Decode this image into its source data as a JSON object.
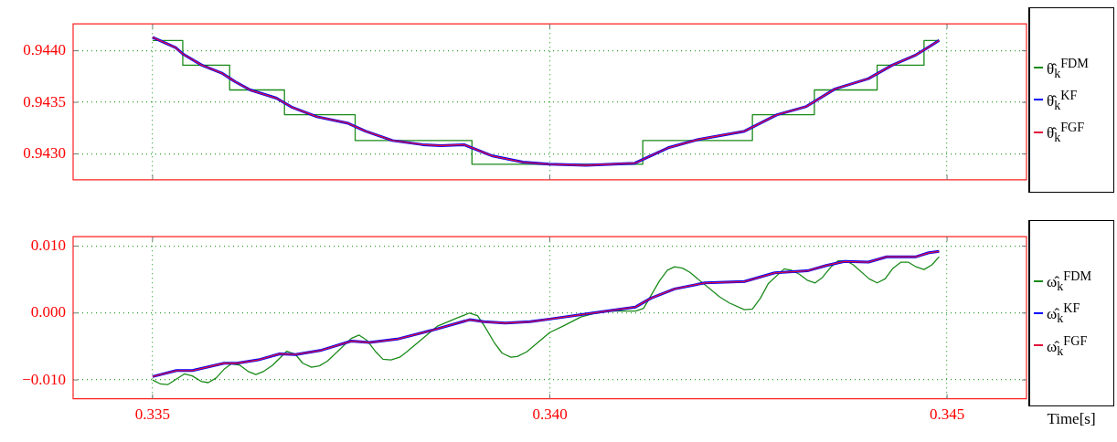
{
  "chart_data": [
    {
      "type": "line",
      "xlim": [
        0.334,
        0.346
      ],
      "ylim": [
        0.94275,
        0.94426
      ],
      "xticks": [
        {
          "value": 0.335,
          "label": null
        },
        {
          "value": 0.34,
          "label": null
        },
        {
          "value": 0.345,
          "label": null
        }
      ],
      "yticks": [
        {
          "value": 0.943,
          "label": "0.9430"
        },
        {
          "value": 0.9435,
          "label": "0.9435"
        },
        {
          "value": 0.944,
          "label": "0.9440"
        }
      ],
      "tick_labels": "y",
      "grid": true,
      "legend": "right",
      "marker": "none",
      "series": [
        {
          "name": "θ̂$_{k}$$^{FDM}$",
          "type": "step",
          "color": "#1a8a1a",
          "x": [
            0.335,
            0.33538,
            0.33597,
            0.33666,
            0.33755,
            0.33902,
            0.34117,
            0.34255,
            0.34333,
            0.34412,
            0.34471,
            0.3449
          ],
          "values": [
            0.9441,
            0.94386,
            0.94362,
            0.94338,
            0.94313,
            0.9429,
            0.94313,
            0.94338,
            0.94362,
            0.94386,
            0.9441,
            0.9441
          ]
        },
        {
          "name": "θ̂$_{k}$$^{KF}$",
          "type": "line",
          "color": "#0000ff",
          "x": [
            0.335,
            0.33529,
            0.33538,
            0.33562,
            0.33588,
            0.33604,
            0.33623,
            0.33656,
            0.33676,
            0.33707,
            0.33745,
            0.33768,
            0.33802,
            0.3384,
            0.33863,
            0.33892,
            0.33928,
            0.33966,
            0.33999,
            0.34046,
            0.34107,
            0.34149,
            0.34187,
            0.34245,
            0.34286,
            0.34323,
            0.34359,
            0.34401,
            0.34431,
            0.34461,
            0.3449
          ],
          "values": [
            0.94413,
            0.94403,
            0.94397,
            0.94386,
            0.94378,
            0.9437,
            0.94362,
            0.94354,
            0.94345,
            0.94336,
            0.9433,
            0.94322,
            0.94313,
            0.94309,
            0.94308,
            0.94309,
            0.94298,
            0.94292,
            0.9429,
            0.94289,
            0.94291,
            0.94306,
            0.94314,
            0.94322,
            0.94338,
            0.94346,
            0.94363,
            0.94373,
            0.94386,
            0.94396,
            0.9441
          ]
        },
        {
          "name": "θ̂$_{k}$$^{FGF}$",
          "type": "line",
          "color": "#e0103a",
          "x": [
            0.335,
            0.33529,
            0.33538,
            0.33562,
            0.33588,
            0.33604,
            0.33623,
            0.33656,
            0.33676,
            0.33707,
            0.33745,
            0.33768,
            0.33802,
            0.3384,
            0.33863,
            0.33892,
            0.33928,
            0.33966,
            0.33999,
            0.34046,
            0.34107,
            0.34149,
            0.34187,
            0.34245,
            0.34286,
            0.34323,
            0.34359,
            0.34401,
            0.34431,
            0.34461,
            0.3449
          ],
          "values": [
            0.94413,
            0.94403,
            0.94397,
            0.94386,
            0.94378,
            0.9437,
            0.94362,
            0.94354,
            0.94345,
            0.94336,
            0.9433,
            0.94322,
            0.94313,
            0.94309,
            0.94308,
            0.94309,
            0.94298,
            0.94292,
            0.9429,
            0.94289,
            0.94291,
            0.94306,
            0.94314,
            0.94322,
            0.94338,
            0.94346,
            0.94363,
            0.94373,
            0.94386,
            0.94396,
            0.9441
          ]
        }
      ]
    },
    {
      "type": "line",
      "xlim": [
        0.334,
        0.346
      ],
      "ylim": [
        -0.0128,
        0.0114
      ],
      "xlabel": "Time[s]",
      "xticks": [
        {
          "value": 0.335,
          "label": "0.335"
        },
        {
          "value": 0.34,
          "label": "0.340"
        },
        {
          "value": 0.345,
          "label": "0.345"
        }
      ],
      "yticks": [
        {
          "value": -0.01,
          "label": "−0.010"
        },
        {
          "value": 0,
          "label": "0.000"
        },
        {
          "value": 0.01,
          "label": "0.010"
        }
      ],
      "grid": true,
      "legend": "right",
      "marker": "none",
      "series": [
        {
          "name": "ω̂$_{k}$$^{FDM}$",
          "type": "line",
          "color": "#1a8a1a",
          "x": [
            0.335,
            0.3351,
            0.33519,
            0.3354,
            0.3355,
            0.33561,
            0.3357,
            0.3358,
            0.3359,
            0.33599,
            0.3361,
            0.3362,
            0.3363,
            0.3364,
            0.33651,
            0.33669,
            0.3368,
            0.33689,
            0.337,
            0.3371,
            0.3372,
            0.3375,
            0.3376,
            0.3377,
            0.33781,
            0.3379,
            0.338,
            0.33811,
            0.3382,
            0.33858,
            0.33882,
            0.33899,
            0.33909,
            0.33918,
            0.3393,
            0.3394,
            0.33951,
            0.33959,
            0.33971,
            0.34,
            0.34016,
            0.34039,
            0.34054,
            0.34073,
            0.34108,
            0.34118,
            0.34138,
            0.34148,
            0.34157,
            0.34167,
            0.34176,
            0.34214,
            0.34226,
            0.34245,
            0.34255,
            0.34265,
            0.34275,
            0.34295,
            0.34304,
            0.34314,
            0.34324,
            0.34334,
            0.34343,
            0.34354,
            0.34363,
            0.34373,
            0.34382,
            0.34402,
            0.34412,
            0.34422,
            0.34432,
            0.34442,
            0.34451,
            0.34461,
            0.34471,
            0.34481,
            0.3449
          ],
          "values": [
            -0.01,
            -0.0106,
            -0.0107,
            -0.0091,
            -0.0094,
            -0.0102,
            -0.0104,
            -0.0097,
            -0.0084,
            -0.0076,
            -0.0078,
            -0.0087,
            -0.0092,
            -0.0087,
            -0.0078,
            -0.0057,
            -0.0062,
            -0.0075,
            -0.0081,
            -0.0079,
            -0.0072,
            -0.0038,
            -0.0033,
            -0.0041,
            -0.0058,
            -0.0069,
            -0.007,
            -0.0066,
            -0.0058,
            -0.002,
            -0.0008,
            0,
            -0.0004,
            -0.002,
            -0.0044,
            -0.006,
            -0.0066,
            -0.0065,
            -0.0058,
            -0.0029,
            -0.002,
            -0.0006,
            -0.0001,
            0.0003,
            0.0003,
            0.0007,
            0.0048,
            0.0064,
            0.0069,
            0.0067,
            0.0061,
            0.0024,
            0.0015,
            0.0005,
            0.0006,
            0.0022,
            0.0044,
            0.0066,
            0.0064,
            0.0058,
            0.0049,
            0.0045,
            0.0053,
            0.0069,
            0.0078,
            0.0078,
            0.0072,
            0.0051,
            0.0045,
            0.0051,
            0.0067,
            0.0076,
            0.0076,
            0.0069,
            0.0065,
            0.0072,
            0.0084
          ]
        },
        {
          "name": "ω̂$_{k}$$^{KF}$",
          "type": "line",
          "color": "#0000ff",
          "x": [
            0.335,
            0.3353,
            0.3355,
            0.3359,
            0.33606,
            0.33633,
            0.3366,
            0.3368,
            0.33711,
            0.3375,
            0.33773,
            0.33808,
            0.33851,
            0.33899,
            0.33917,
            0.33944,
            0.33975,
            0.34,
            0.34054,
            0.34108,
            0.34127,
            0.34157,
            0.34195,
            0.34245,
            0.34283,
            0.34324,
            0.34348,
            0.34371,
            0.34401,
            0.34424,
            0.34461,
            0.34477,
            0.3449
          ],
          "values": [
            -0.0095,
            -0.0086,
            -0.0086,
            -0.0075,
            -0.0075,
            -0.007,
            -0.0061,
            -0.0062,
            -0.0056,
            -0.0042,
            -0.0044,
            -0.0039,
            -0.0026,
            -0.001,
            -0.0013,
            -0.0015,
            -0.0013,
            -0.0009,
            0,
            0.0009,
            0.0022,
            0.0036,
            0.0045,
            0.0047,
            0.006,
            0.0063,
            0.0071,
            0.0077,
            0.0076,
            0.0084,
            0.0084,
            0.009,
            0.0092
          ]
        },
        {
          "name": "ω̂$_{k}$$^{FGF}$",
          "type": "line",
          "color": "#e0103a",
          "x": [
            0.335,
            0.3353,
            0.3355,
            0.3359,
            0.33606,
            0.33633,
            0.3366,
            0.3368,
            0.33711,
            0.3375,
            0.33773,
            0.33808,
            0.33851,
            0.33899,
            0.33917,
            0.33944,
            0.33975,
            0.34,
            0.34054,
            0.34108,
            0.34127,
            0.34157,
            0.34195,
            0.34245,
            0.34283,
            0.34324,
            0.34348,
            0.34371,
            0.34401,
            0.34424,
            0.34461,
            0.34477,
            0.3449
          ],
          "values": [
            -0.0095,
            -0.0086,
            -0.0086,
            -0.0075,
            -0.0075,
            -0.007,
            -0.0061,
            -0.0062,
            -0.0056,
            -0.0042,
            -0.0044,
            -0.0039,
            -0.0026,
            -0.001,
            -0.0013,
            -0.0015,
            -0.0013,
            -0.0009,
            0,
            0.0009,
            0.0022,
            0.0036,
            0.0045,
            0.0047,
            0.006,
            0.0063,
            0.0071,
            0.0077,
            0.0076,
            0.0084,
            0.0084,
            0.009,
            0.0092
          ]
        }
      ]
    }
  ]
}
